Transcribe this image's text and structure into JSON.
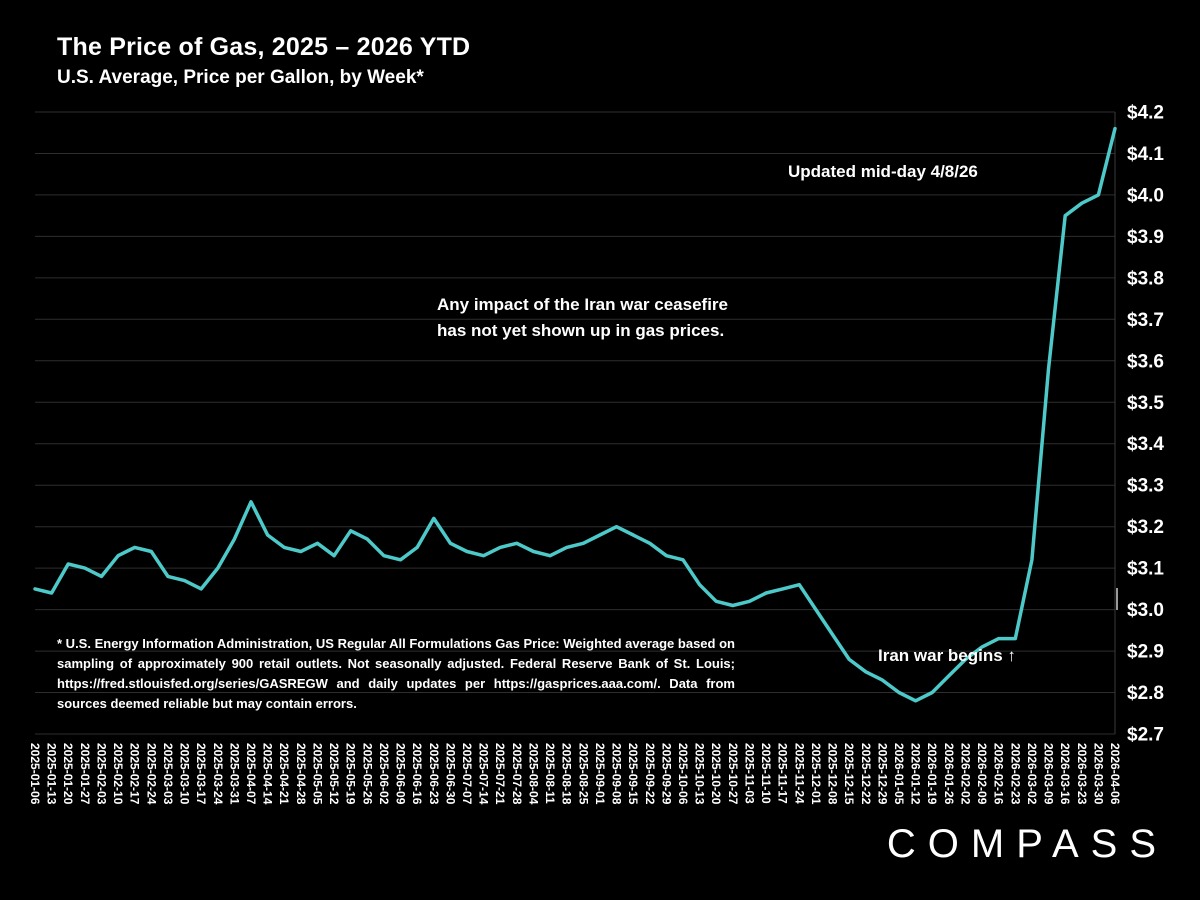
{
  "header": {
    "title": "The Price of Gas, 2025 – 2026 YTD",
    "subtitle": "U.S. Average, Price per Gallon, by Week*"
  },
  "annotations": {
    "updated": "Updated mid-day 4/8/26",
    "ceasefire_line1": "Any impact of the Iran war ceasefire",
    "ceasefire_line2": "has not yet shown up in gas prices.",
    "iran_war": "Iran war begins ↑"
  },
  "footnote": "* U.S. Energy Information Administration, US Regular All Formulations Gas Price: Weighted average based on sampling of approximately 900 retail outlets. Not seasonally adjusted. Federal Reserve Bank of St. Louis; https://fred.stlouisfed.org/series/GASREGW and daily updates per https://gasprices.aaa.com/. Data from sources deemed reliable but may contain errors.",
  "logo": "COMPASS",
  "chart_data": {
    "type": "line",
    "title": "The Price of Gas, 2025 – 2026 YTD",
    "subtitle": "U.S. Average, Price per Gallon, by Week*",
    "ylabel": "",
    "xlabel": "",
    "ylim": [
      2.7,
      4.2
    ],
    "ytick_step": 0.1,
    "ytick_prefix": "$",
    "y_axis_side": "right",
    "grid": true,
    "legend": false,
    "line_color": "#4dc9c9",
    "grid_color": "#2e2e2e",
    "background": "#000000",
    "text_color": "#ffffff",
    "x": [
      "2025-01-06",
      "2025-01-13",
      "2025-01-20",
      "2025-01-27",
      "2025-02-03",
      "2025-02-10",
      "2025-02-17",
      "2025-02-24",
      "2025-03-03",
      "2025-03-10",
      "2025-03-17",
      "2025-03-24",
      "2025-03-31",
      "2025-04-07",
      "2025-04-14",
      "2025-04-21",
      "2025-04-28",
      "2025-05-05",
      "2025-05-12",
      "2025-05-19",
      "2025-05-26",
      "2025-06-02",
      "2025-06-09",
      "2025-06-16",
      "2025-06-23",
      "2025-06-30",
      "2025-07-07",
      "2025-07-14",
      "2025-07-21",
      "2025-07-28",
      "2025-08-04",
      "2025-08-11",
      "2025-08-18",
      "2025-08-25",
      "2025-09-01",
      "2025-09-08",
      "2025-09-15",
      "2025-09-22",
      "2025-09-29",
      "2025-10-06",
      "2025-10-13",
      "2025-10-20",
      "2025-10-27",
      "2025-11-03",
      "2025-11-10",
      "2025-11-17",
      "2025-11-24",
      "2025-12-01",
      "2025-12-08",
      "2025-12-15",
      "2025-12-22",
      "2025-12-29",
      "2026-01-05",
      "2026-01-12",
      "2026-01-19",
      "2026-01-26",
      "2026-02-02",
      "2026-02-09",
      "2026-02-16",
      "2026-02-23",
      "2026-03-02",
      "2026-03-09",
      "2026-03-16",
      "2026-03-23",
      "2026-03-30",
      "2026-04-06"
    ],
    "values": [
      3.05,
      3.04,
      3.11,
      3.1,
      3.08,
      3.13,
      3.15,
      3.14,
      3.08,
      3.07,
      3.05,
      3.1,
      3.17,
      3.26,
      3.18,
      3.15,
      3.14,
      3.16,
      3.13,
      3.19,
      3.17,
      3.13,
      3.12,
      3.15,
      3.22,
      3.16,
      3.14,
      3.13,
      3.15,
      3.16,
      3.14,
      3.13,
      3.15,
      3.16,
      3.18,
      3.2,
      3.18,
      3.16,
      3.13,
      3.12,
      3.06,
      3.02,
      3.01,
      3.02,
      3.04,
      3.05,
      3.06,
      3.0,
      2.94,
      2.88,
      2.85,
      2.83,
      2.8,
      2.78,
      2.8,
      2.84,
      2.88,
      2.91,
      2.93,
      2.93,
      3.12,
      3.58,
      3.95,
      3.98,
      4.0,
      4.16
    ]
  }
}
